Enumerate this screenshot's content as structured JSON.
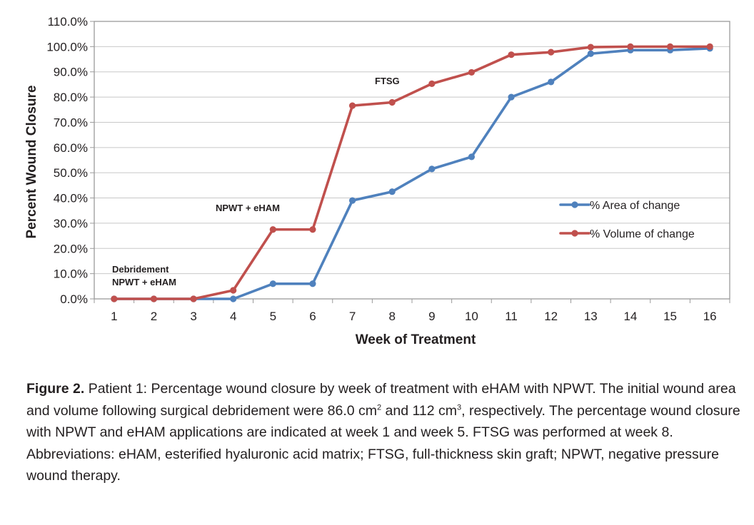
{
  "chart_data": {
    "type": "line",
    "title": "",
    "xlabel": "Week of Treatment",
    "ylabel": "Percent Wound Closure",
    "categories": [
      "1",
      "2",
      "3",
      "4",
      "5",
      "6",
      "7",
      "8",
      "9",
      "10",
      "11",
      "12",
      "13",
      "14",
      "15",
      "16"
    ],
    "y_ticks": [
      "0.0%",
      "10.0%",
      "20.0%",
      "30.0%",
      "40.0%",
      "50.0%",
      "60.0%",
      "70.0%",
      "80.0%",
      "90.0%",
      "100.0%",
      "110.0%"
    ],
    "ylim": [
      0,
      110
    ],
    "grid": true,
    "legend_position": "right",
    "series": [
      {
        "name": "% Area of change",
        "color": "#4f81bd",
        "values": [
          0,
          0,
          0,
          0,
          6,
          6,
          39,
          42.5,
          51.5,
          56.3,
          80,
          86,
          97.2,
          98.6,
          98.6,
          99.3
        ]
      },
      {
        "name": "% Volume of change",
        "color": "#c0504d",
        "values": [
          0,
          0,
          0,
          3.4,
          27.5,
          27.5,
          76.6,
          77.9,
          85.3,
          89.8,
          96.8,
          97.8,
          99.8,
          100,
          100,
          100
        ]
      }
    ],
    "annotations": [
      {
        "lines": [
          "Debridement",
          "NPWT + eHAM"
        ],
        "week": 1
      },
      {
        "lines": [
          "NPWT + eHAM"
        ],
        "week": 5
      },
      {
        "lines": [
          "FTSG"
        ],
        "week": 8
      }
    ]
  },
  "caption": {
    "label": "Figure 2.",
    "text_1": " Patient 1: Percentage wound closure by week of treatment with eHAM with NPWT. The initial wound area and volume following surgical debridement were 86.0 cm",
    "sup_area": "2",
    "text_2": " and 112 cm",
    "sup_volume": "3",
    "text_3": ", respectively. The percentage wound closure with NPWT and eHAM applications are indicated at week 1 and week 5. FTSG was performed at week 8.",
    "abbreviations": "Abbreviations: eHAM, esterified hyaluronic acid matrix; FTSG, full-thickness skin graft; NPWT, negative pressure wound therapy."
  }
}
